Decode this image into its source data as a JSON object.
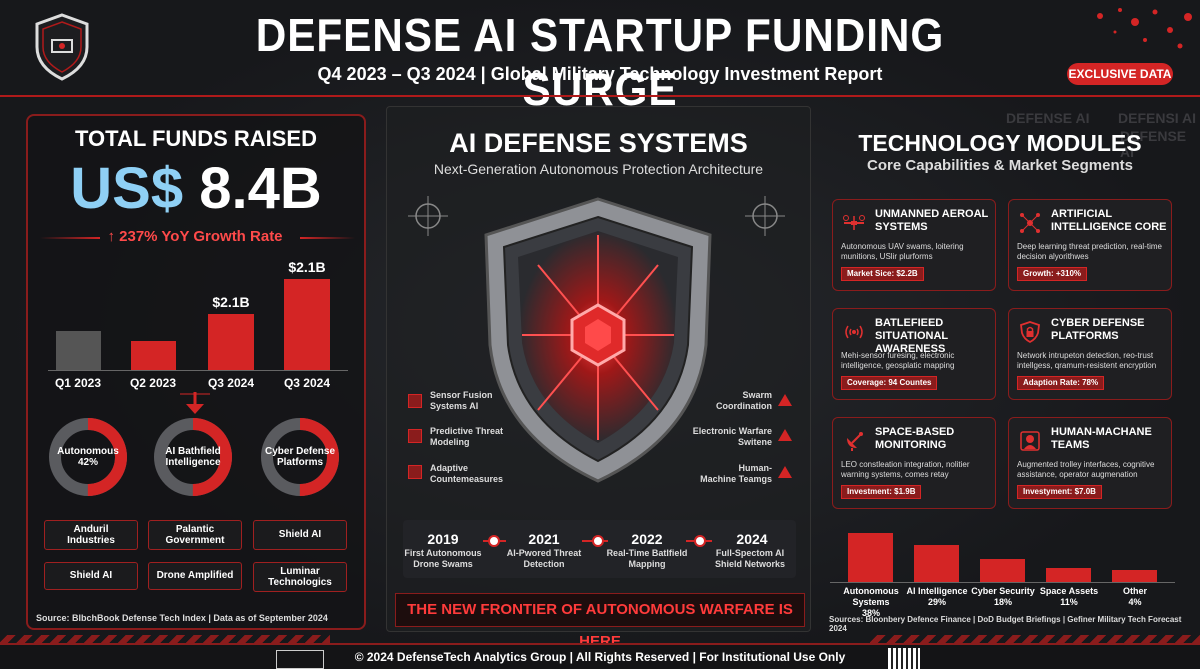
{
  "header": {
    "title": "DEFENSE AI STARTUP FUNDING SURGE",
    "subtitle": "Q4 2023 – Q3 2024 | Global Military Technology Investment Report",
    "badge": "EXCLUSIVE DATA",
    "logo_icon": "shield-logo-icon"
  },
  "left": {
    "heading": "TOTAL FUNDS RAISED",
    "currency": "US$",
    "amount": "8.4B",
    "growth": "237% YoY Growth Rate",
    "bars": [
      {
        "label": "Q1 2023",
        "value_label": ""
      },
      {
        "label": "Q2 2023",
        "value_label": ""
      },
      {
        "label": "Q3 2024",
        "value_label": "$2.1B"
      },
      {
        "label": "Q3 2024",
        "value_label": "$2.1B"
      }
    ],
    "donuts": [
      {
        "label": "Autonomous",
        "sub": "42%",
        "fraction": 0.42
      },
      {
        "label": "AI Bathfield",
        "sub": "Intelligence",
        "fraction": 0.35
      },
      {
        "label": "Cyber Defense",
        "sub": "Platforms",
        "fraction": 0.28
      }
    ],
    "companies": [
      {
        "line1": "Anduril",
        "line2": "Industries"
      },
      {
        "line1": "Palantic",
        "line2": "Government"
      },
      {
        "line1": "Shield AI",
        "line2": ""
      },
      {
        "line1": "Shield AI",
        "line2": ""
      },
      {
        "line1": "Drone Amplified",
        "line2": ""
      },
      {
        "line1": "Luminar",
        "line2": "Technologics"
      }
    ],
    "source": "Source: BlbchBook Defense Tech Index | Data as of September 2024"
  },
  "middle": {
    "title": "AI DEFENSE SYSTEMS",
    "subtitle": "Next-Generation Autonomous Protection Architecture",
    "left_features": [
      {
        "line1": "Sensor Fusion",
        "line2": "Systems AI"
      },
      {
        "line1": "Predictive Threat",
        "line2": "Modeling"
      },
      {
        "line1": "Adaptive",
        "line2": "Countemeasures"
      }
    ],
    "right_features": [
      {
        "line1": "Swarm",
        "line2": "Coordination"
      },
      {
        "line1": "Electronic Warfare",
        "line2": "Switene"
      },
      {
        "line1": "Human-",
        "line2": "Machine Teamgs"
      }
    ],
    "timeline": [
      {
        "year": "2019",
        "line1": "First Autonomous",
        "line2": "Drone Swams"
      },
      {
        "year": "2021",
        "line1": "AI-Pwored Threat",
        "line2": "Detection"
      },
      {
        "year": "2022",
        "line1": "Real-Time Batlfield",
        "line2": "Mapping"
      },
      {
        "year": "2024",
        "line1": "Full-Spectom AI",
        "line2": "Shield Networks"
      }
    ],
    "banner": "THE NEW FRONTIER OF AUTONOMOUS WARFARE IS HERE"
  },
  "right": {
    "title": "TECHNOLOGY MODULES",
    "subtitle": "Core Capabilities & Market Segments",
    "ghost1": "DEFENSE AI",
    "ghost2": "DEFENSI AI",
    "ghost3": "DEFENSE AI",
    "cards": [
      {
        "title": "UNMANNED AEROAL SYSTEMS",
        "desc": "Autonomous UAV swams, loitering munitions, USlir plurforms",
        "tag": "Market Sice: $2.2B",
        "icon": "drone-icon"
      },
      {
        "title": "ARTIFICIAL INTELLIGENCE CORE",
        "desc": "Deep learning threat prediction, real-time decision alyorithwes",
        "tag": "Growth: +310%",
        "icon": "network-icon"
      },
      {
        "title": "BATLEFIEED SITUATIONAL AWARENESS",
        "desc": "Mehi-sensor furesing, electronic intelligence, geosplatic mapping",
        "tag": "Coverage: 94 Countes",
        "icon": "radar-icon"
      },
      {
        "title": "CYBER DEFENSE PLATFORMS",
        "desc": "Network intrupeton detection, reo-trust intellgess, qramum-resistent encryption",
        "tag": "Adaption Rate: 78%",
        "icon": "lock-shield-icon"
      },
      {
        "title": "SPACE-BASED MONITORING",
        "desc": "LEO constleation integration, nolitier warning systems, comes retay",
        "tag": "Investment: $1.9B",
        "icon": "satellite-icon"
      },
      {
        "title": "HUMAN-MACHANE TEAMS",
        "desc": "Augmented trolley interfaces, cognitive assistance, operator augmenation",
        "tag": "Investyment: $7.0B",
        "icon": "helmet-icon"
      }
    ],
    "market_bars": [
      {
        "label": "Autonomous Systems",
        "pct": "38%",
        "value": 38
      },
      {
        "label": "AI Intelligence",
        "pct": "29%",
        "value": 29
      },
      {
        "label": "Cyber Security",
        "pct": "18%",
        "value": 18
      },
      {
        "label": "Space Assets",
        "pct": "11%",
        "value": 11
      },
      {
        "label": "Other",
        "pct": "4%",
        "value": 4
      }
    ],
    "source": "Sources: Bloonbery Defence Finance | DoD Budget Briefings | Gefiner Military Tech Forecast 2024"
  },
  "footer": {
    "text": "© 2024 DefenseTech Analytics Group | All Rights Reserved | For Institutional Use Only"
  },
  "colors": {
    "accent": "#d42525",
    "dark": "#17181b",
    "blue": "#8fd0f5"
  }
}
